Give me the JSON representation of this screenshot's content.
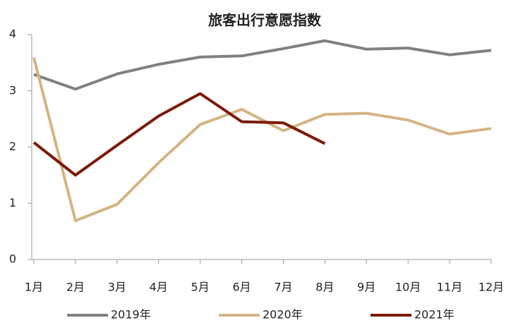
{
  "chart_data": {
    "type": "line",
    "title": "旅客出行意愿指数",
    "categories": [
      "1月",
      "2月",
      "3月",
      "4月",
      "5月",
      "6月",
      "7月",
      "8月",
      "9月",
      "10月",
      "11月",
      "12月"
    ],
    "series": [
      {
        "name": "2019年",
        "color": "#808080",
        "values": [
          3.29,
          3.03,
          3.3,
          3.47,
          3.6,
          3.62,
          3.75,
          3.89,
          3.74,
          3.76,
          3.64,
          3.72
        ]
      },
      {
        "name": "2020年",
        "color": "#d4b483",
        "values": [
          3.59,
          0.69,
          0.98,
          1.72,
          2.4,
          2.67,
          2.29,
          2.58,
          2.6,
          2.48,
          2.23,
          2.33
        ]
      },
      {
        "name": "2021年",
        "color": "#7b1a0a",
        "values": [
          2.08,
          1.5,
          2.03,
          2.55,
          2.95,
          2.45,
          2.43,
          2.06,
          null,
          null,
          null,
          null
        ]
      }
    ],
    "ylim": [
      0,
      4
    ],
    "yticks": [
      0,
      1,
      2,
      3,
      4
    ],
    "grid": false
  }
}
